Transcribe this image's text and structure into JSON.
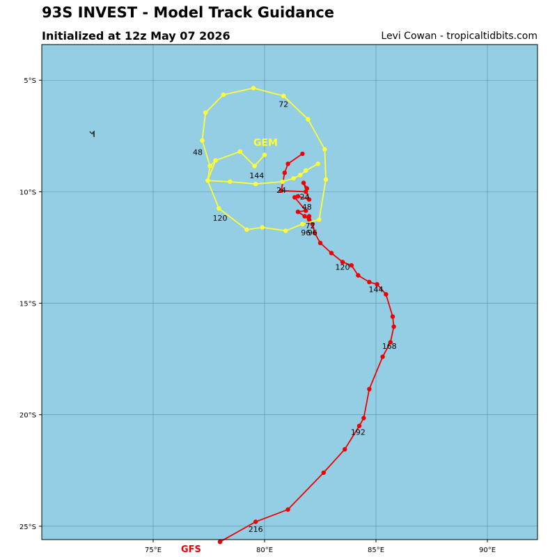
{
  "header": {
    "title": "93S INVEST - Model Track Guidance",
    "subtitle": "Initialized at 12z May 07 2026",
    "credit": "Levi Cowan - tropicaltidbits.com"
  },
  "colors": {
    "ocean": "#94cee4",
    "grid": "#4a7f94",
    "gfs": "#ee0000",
    "gem": "#ffff33",
    "land": "#333333"
  },
  "chart_data": {
    "type": "map-track",
    "lon_range": [
      70,
      92.25
    ],
    "lat_range": [
      -25.6,
      -3.4
    ],
    "lon_ticks": [
      {
        "value": 75,
        "label": "75°E"
      },
      {
        "value": 80,
        "label": "80°E"
      },
      {
        "value": 85,
        "label": "85°E"
      },
      {
        "value": 90,
        "label": "90°E"
      }
    ],
    "lat_ticks": [
      {
        "value": -5,
        "label": "5°S"
      },
      {
        "value": -10,
        "label": "10°S"
      },
      {
        "value": -15,
        "label": "15°S"
      },
      {
        "value": -20,
        "label": "20°S"
      },
      {
        "value": -25,
        "label": "25°S"
      }
    ],
    "grid": true,
    "models": [
      {
        "name": "GFS",
        "color": "#ee0000",
        "legend": "bottom",
        "points": [
          [
            81.7,
            -8.3
          ],
          [
            81.05,
            -8.75
          ],
          [
            80.9,
            -9.15
          ],
          [
            80.75,
            -9.95
          ],
          [
            81.85,
            -10.0
          ],
          [
            81.9,
            -9.85
          ],
          [
            81.75,
            -9.6
          ],
          [
            82.0,
            -10.35
          ],
          [
            81.5,
            -10.2
          ],
          [
            81.35,
            -10.25
          ],
          [
            81.85,
            -10.85
          ],
          [
            81.5,
            -10.9
          ],
          [
            81.8,
            -11.1
          ],
          [
            82.0,
            -11.25
          ],
          [
            82.0,
            -11.1
          ],
          [
            82.15,
            -11.45
          ],
          [
            82.25,
            -11.85
          ],
          [
            82.5,
            -12.3
          ],
          [
            83.0,
            -12.75
          ],
          [
            83.5,
            -13.15
          ],
          [
            83.9,
            -13.3
          ],
          [
            84.2,
            -13.75
          ],
          [
            84.7,
            -14.05
          ],
          [
            85.05,
            -14.15
          ],
          [
            85.45,
            -14.6
          ],
          [
            85.75,
            -15.6
          ],
          [
            85.8,
            -16.05
          ],
          [
            85.65,
            -16.75
          ],
          [
            85.3,
            -17.4
          ],
          [
            84.7,
            -18.85
          ],
          [
            84.45,
            -20.15
          ],
          [
            84.25,
            -20.5
          ],
          [
            83.6,
            -21.55
          ],
          [
            82.65,
            -22.6
          ],
          [
            81.05,
            -24.25
          ],
          [
            79.6,
            -24.8
          ],
          [
            78.0,
            -25.7
          ]
        ],
        "labels": [
          {
            "text": "24",
            "lon": 81.8,
            "lat": -10.35
          },
          {
            "text": "48",
            "lon": 81.9,
            "lat": -10.8
          },
          {
            "text": "72",
            "lon": 82.05,
            "lat": -11.65
          },
          {
            "text": "96",
            "lon": 82.15,
            "lat": -11.95
          },
          {
            "text": "120",
            "lon": 83.5,
            "lat": -13.5
          },
          {
            "text": "144",
            "lon": 85.0,
            "lat": -14.5
          },
          {
            "text": "168",
            "lon": 85.6,
            "lat": -17.05
          },
          {
            "text": "192",
            "lon": 84.2,
            "lat": -20.9
          },
          {
            "text": "216",
            "lon": 79.6,
            "lat": -25.25
          }
        ]
      },
      {
        "name": "GEM",
        "color": "#ffff33",
        "legend": "on-map",
        "label_position": [
          79.5,
          -7.95
        ],
        "points": [
          [
            82.4,
            -8.75
          ],
          [
            81.85,
            -9.05
          ],
          [
            81.6,
            -9.25
          ],
          [
            81.3,
            -9.4
          ],
          [
            80.8,
            -9.55
          ],
          [
            79.6,
            -9.65
          ],
          [
            78.45,
            -9.55
          ],
          [
            77.45,
            -9.5
          ],
          [
            77.8,
            -8.6
          ],
          [
            78.9,
            -8.2
          ],
          [
            79.55,
            -8.85
          ],
          [
            80.0,
            -8.35
          ],
          [
            79.55,
            -8.85
          ],
          [
            78.9,
            -8.2
          ],
          [
            77.8,
            -8.6
          ],
          [
            77.55,
            -8.85
          ],
          [
            77.2,
            -7.7
          ],
          [
            77.35,
            -6.45
          ],
          [
            78.15,
            -5.65
          ],
          [
            79.5,
            -5.35
          ],
          [
            80.85,
            -5.7
          ],
          [
            81.95,
            -6.75
          ],
          [
            82.7,
            -8.1
          ],
          [
            82.75,
            -9.45
          ],
          [
            82.45,
            -11.25
          ],
          [
            81.7,
            -11.45
          ],
          [
            80.95,
            -11.75
          ],
          [
            79.9,
            -11.6
          ],
          [
            79.2,
            -11.7
          ],
          [
            77.95,
            -10.75
          ],
          [
            77.45,
            -9.5
          ],
          [
            77.55,
            -8.85
          ]
        ],
        "labels": [
          {
            "text": "24",
            "lon": 80.75,
            "lat": -10.05
          },
          {
            "text": "48",
            "lon": 77.0,
            "lat": -8.35
          },
          {
            "text": "72",
            "lon": 80.85,
            "lat": -6.2
          },
          {
            "text": "96",
            "lon": 81.85,
            "lat": -11.95
          },
          {
            "text": "120",
            "lon": 78.0,
            "lat": -11.3
          },
          {
            "text": "144",
            "lon": 79.65,
            "lat": -9.4
          }
        ]
      }
    ],
    "land": [
      {
        "name": "small-island",
        "points": [
          [
            72.15,
            -7.3
          ],
          [
            72.25,
            -7.4
          ],
          [
            72.35,
            -7.3
          ],
          [
            72.35,
            -7.55
          ],
          [
            72.3,
            -7.3
          ]
        ]
      }
    ]
  }
}
